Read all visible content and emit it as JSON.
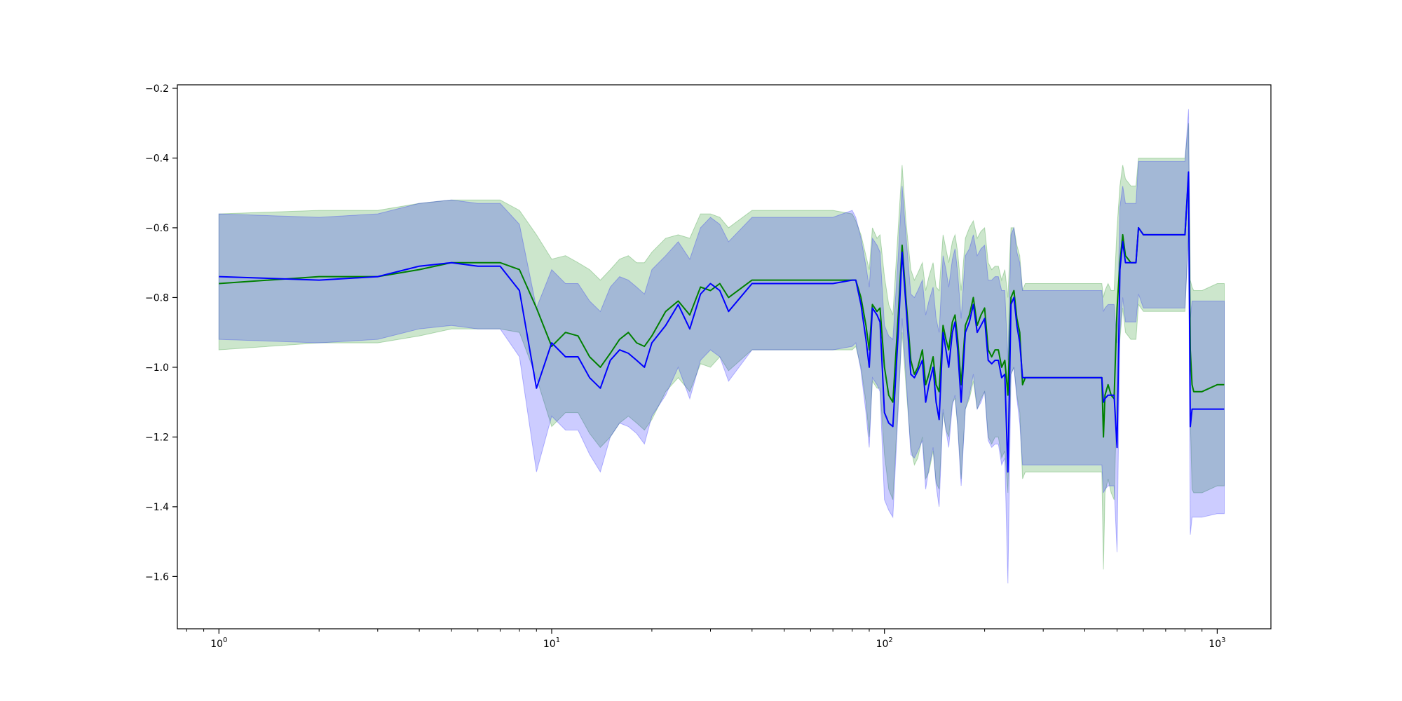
{
  "chart_data": {
    "type": "line",
    "title": "",
    "xlabel": "",
    "ylabel": "",
    "x_scale": "log",
    "xlim": [
      0.75,
      1450
    ],
    "ylim": [
      -1.75,
      -0.19
    ],
    "grid": false,
    "legend": "none",
    "x_ticks": [
      {
        "value": 1,
        "base": "10",
        "exp": "0"
      },
      {
        "value": 10,
        "base": "10",
        "exp": "1"
      },
      {
        "value": 100,
        "base": "10",
        "exp": "2"
      },
      {
        "value": 1000,
        "base": "10",
        "exp": "3"
      }
    ],
    "y_ticks": [
      {
        "value": -0.2,
        "label": "−0.2"
      },
      {
        "value": -0.4,
        "label": "−0.4"
      },
      {
        "value": -0.6,
        "label": "−0.6"
      },
      {
        "value": -0.8,
        "label": "−0.8"
      },
      {
        "value": -1.0,
        "label": "−1.0"
      },
      {
        "value": -1.2,
        "label": "−1.2"
      },
      {
        "value": -1.4,
        "label": "−1.4"
      },
      {
        "value": -1.6,
        "label": "−1.6"
      }
    ],
    "series": [
      {
        "color": "#008000",
        "band_color": "#008000",
        "band_opacity": 0.2,
        "x": [
          1,
          2,
          3,
          4,
          5,
          6,
          7,
          8,
          9,
          10,
          11,
          12,
          13,
          14,
          15,
          16,
          17,
          18,
          19,
          20,
          22,
          24,
          26,
          28,
          30,
          32,
          34,
          40,
          50,
          60,
          70,
          80,
          82,
          85,
          88,
          90,
          92,
          95,
          97,
          100,
          103,
          106,
          110,
          113,
          116,
          120,
          123,
          126,
          130,
          133,
          136,
          140,
          143,
          146,
          150,
          153,
          156,
          160,
          163,
          166,
          170,
          175,
          180,
          185,
          190,
          195,
          200,
          205,
          210,
          215,
          220,
          225,
          230,
          235,
          240,
          245,
          250,
          255,
          260,
          265,
          270,
          300,
          350,
          400,
          450,
          455,
          460,
          470,
          480,
          490,
          500,
          510,
          520,
          530,
          540,
          550,
          560,
          570,
          580,
          600,
          700,
          800,
          820,
          830,
          840,
          850,
          900,
          1000,
          1050
        ],
        "y": [
          -0.76,
          -0.74,
          -0.74,
          -0.72,
          -0.7,
          -0.7,
          -0.7,
          -0.72,
          -0.83,
          -0.94,
          -0.9,
          -0.91,
          -0.97,
          -1.0,
          -0.96,
          -0.92,
          -0.9,
          -0.93,
          -0.94,
          -0.91,
          -0.84,
          -0.81,
          -0.85,
          -0.77,
          -0.78,
          -0.76,
          -0.8,
          -0.75,
          -0.75,
          -0.75,
          -0.75,
          -0.75,
          -0.75,
          -0.8,
          -0.88,
          -0.95,
          -0.82,
          -0.84,
          -0.83,
          -1.0,
          -1.08,
          -1.1,
          -0.85,
          -0.65,
          -0.8,
          -0.98,
          -1.02,
          -1.0,
          -0.95,
          -1.05,
          -1.02,
          -0.97,
          -1.05,
          -1.07,
          -0.88,
          -0.92,
          -0.95,
          -0.87,
          -0.85,
          -0.92,
          -1.05,
          -0.88,
          -0.85,
          -0.8,
          -0.88,
          -0.85,
          -0.83,
          -0.95,
          -0.97,
          -0.95,
          -0.95,
          -1.0,
          -0.98,
          -1.08,
          -0.8,
          -0.78,
          -0.86,
          -0.9,
          -1.05,
          -1.03,
          -1.03,
          -1.03,
          -1.03,
          -1.03,
          -1.03,
          -1.2,
          -1.08,
          -1.05,
          -1.08,
          -1.09,
          -0.83,
          -0.7,
          -0.62,
          -0.68,
          -0.69,
          -0.7,
          -0.7,
          -0.7,
          -0.6,
          -0.62,
          -0.62,
          -0.62,
          -0.45,
          -0.95,
          -1.05,
          -1.07,
          -1.07,
          -1.05,
          -1.05
        ],
        "upper": [
          -0.56,
          -0.55,
          -0.55,
          -0.53,
          -0.52,
          -0.52,
          -0.52,
          -0.55,
          -0.62,
          -0.69,
          -0.68,
          -0.7,
          -0.72,
          -0.75,
          -0.72,
          -0.69,
          -0.68,
          -0.7,
          -0.7,
          -0.67,
          -0.63,
          -0.62,
          -0.63,
          -0.56,
          -0.56,
          -0.57,
          -0.6,
          -0.55,
          -0.55,
          -0.55,
          -0.55,
          -0.56,
          -0.58,
          -0.62,
          -0.68,
          -0.72,
          -0.6,
          -0.63,
          -0.62,
          -0.74,
          -0.82,
          -0.85,
          -0.6,
          -0.42,
          -0.58,
          -0.72,
          -0.75,
          -0.73,
          -0.7,
          -0.78,
          -0.74,
          -0.7,
          -0.77,
          -0.78,
          -0.62,
          -0.66,
          -0.7,
          -0.64,
          -0.62,
          -0.67,
          -0.78,
          -0.63,
          -0.6,
          -0.58,
          -0.63,
          -0.61,
          -0.6,
          -0.7,
          -0.72,
          -0.71,
          -0.71,
          -0.75,
          -0.72,
          -0.8,
          -0.6,
          -0.6,
          -0.65,
          -0.68,
          -0.78,
          -0.76,
          -0.76,
          -0.76,
          -0.76,
          -0.76,
          -0.76,
          -0.8,
          -0.78,
          -0.76,
          -0.78,
          -0.78,
          -0.6,
          -0.48,
          -0.42,
          -0.46,
          -0.47,
          -0.48,
          -0.48,
          -0.48,
          -0.4,
          -0.4,
          -0.4,
          -0.4,
          -0.3,
          -0.75,
          -0.77,
          -0.78,
          -0.78,
          -0.76,
          -0.76
        ],
        "lower": [
          -0.95,
          -0.93,
          -0.93,
          -0.91,
          -0.89,
          -0.89,
          -0.89,
          -0.9,
          -1.03,
          -1.17,
          -1.13,
          -1.13,
          -1.19,
          -1.23,
          -1.2,
          -1.16,
          -1.14,
          -1.16,
          -1.18,
          -1.15,
          -1.07,
          -1.03,
          -1.07,
          -0.99,
          -1.0,
          -0.97,
          -1.01,
          -0.95,
          -0.95,
          -0.95,
          -0.95,
          -0.95,
          -0.94,
          -1.0,
          -1.1,
          -1.2,
          -1.04,
          -1.06,
          -1.06,
          -1.25,
          -1.35,
          -1.38,
          -1.1,
          -0.9,
          -1.05,
          -1.23,
          -1.28,
          -1.26,
          -1.2,
          -1.32,
          -1.3,
          -1.24,
          -1.33,
          -1.35,
          -1.13,
          -1.18,
          -1.2,
          -1.1,
          -1.09,
          -1.17,
          -1.32,
          -1.12,
          -1.09,
          -1.04,
          -1.12,
          -1.09,
          -1.07,
          -1.2,
          -1.22,
          -1.2,
          -1.2,
          -1.26,
          -1.24,
          -1.36,
          -1.02,
          -1.0,
          -1.08,
          -1.13,
          -1.32,
          -1.3,
          -1.3,
          -1.3,
          -1.3,
          -1.3,
          -1.3,
          -1.58,
          -1.36,
          -1.32,
          -1.36,
          -1.38,
          -1.08,
          -0.92,
          -0.83,
          -0.9,
          -0.91,
          -0.92,
          -0.92,
          -0.92,
          -0.82,
          -0.84,
          -0.84,
          -0.84,
          -0.6,
          -1.15,
          -1.35,
          -1.36,
          -1.36,
          -1.34,
          -1.34
        ]
      },
      {
        "color": "#0000ff",
        "band_color": "#0000ff",
        "band_opacity": 0.2,
        "x": [
          1,
          2,
          3,
          4,
          5,
          6,
          7,
          8,
          9,
          10,
          11,
          12,
          13,
          14,
          15,
          16,
          17,
          18,
          19,
          20,
          22,
          24,
          26,
          28,
          30,
          32,
          34,
          40,
          50,
          60,
          70,
          80,
          82,
          85,
          88,
          90,
          92,
          95,
          97,
          100,
          103,
          106,
          110,
          113,
          116,
          120,
          123,
          126,
          130,
          133,
          136,
          140,
          143,
          146,
          150,
          153,
          156,
          160,
          163,
          166,
          170,
          175,
          180,
          185,
          190,
          195,
          200,
          205,
          210,
          215,
          220,
          225,
          230,
          235,
          240,
          245,
          250,
          255,
          260,
          265,
          270,
          300,
          350,
          400,
          450,
          455,
          460,
          470,
          480,
          490,
          500,
          510,
          520,
          530,
          540,
          550,
          560,
          570,
          580,
          600,
          700,
          800,
          820,
          830,
          840,
          850,
          900,
          1000,
          1050
        ],
        "y": [
          -0.74,
          -0.75,
          -0.74,
          -0.71,
          -0.7,
          -0.71,
          -0.71,
          -0.78,
          -1.06,
          -0.93,
          -0.97,
          -0.97,
          -1.03,
          -1.06,
          -0.98,
          -0.95,
          -0.96,
          -0.98,
          -1.0,
          -0.93,
          -0.88,
          -0.82,
          -0.89,
          -0.79,
          -0.76,
          -0.78,
          -0.84,
          -0.76,
          -0.76,
          -0.76,
          -0.76,
          -0.75,
          -0.75,
          -0.82,
          -0.92,
          -1.0,
          -0.83,
          -0.85,
          -0.87,
          -1.13,
          -1.16,
          -1.17,
          -0.9,
          -0.67,
          -0.82,
          -1.02,
          -1.03,
          -1.01,
          -0.98,
          -1.1,
          -1.05,
          -1.0,
          -1.1,
          -1.15,
          -0.9,
          -0.95,
          -1.0,
          -0.9,
          -0.87,
          -0.95,
          -1.1,
          -0.9,
          -0.87,
          -0.82,
          -0.9,
          -0.88,
          -0.86,
          -0.98,
          -0.99,
          -0.98,
          -0.98,
          -1.03,
          -1.02,
          -1.3,
          -0.82,
          -0.8,
          -0.88,
          -0.93,
          -1.03,
          -1.03,
          -1.03,
          -1.03,
          -1.03,
          -1.03,
          -1.03,
          -1.1,
          -1.09,
          -1.08,
          -1.08,
          -1.08,
          -1.23,
          -0.72,
          -0.64,
          -0.7,
          -0.7,
          -0.7,
          -0.7,
          -0.7,
          -0.6,
          -0.62,
          -0.62,
          -0.62,
          -0.44,
          -1.17,
          -1.12,
          -1.12,
          -1.12,
          -1.12,
          -1.12
        ],
        "upper": [
          -0.56,
          -0.57,
          -0.56,
          -0.53,
          -0.52,
          -0.53,
          -0.53,
          -0.59,
          -0.83,
          -0.72,
          -0.76,
          -0.76,
          -0.81,
          -0.84,
          -0.77,
          -0.74,
          -0.75,
          -0.77,
          -0.79,
          -0.72,
          -0.68,
          -0.64,
          -0.69,
          -0.6,
          -0.57,
          -0.59,
          -0.64,
          -0.57,
          -0.57,
          -0.57,
          -0.57,
          -0.55,
          -0.57,
          -0.63,
          -0.71,
          -0.77,
          -0.63,
          -0.65,
          -0.67,
          -0.88,
          -0.91,
          -0.92,
          -0.68,
          -0.48,
          -0.62,
          -0.79,
          -0.8,
          -0.78,
          -0.75,
          -0.85,
          -0.81,
          -0.77,
          -0.86,
          -0.9,
          -0.68,
          -0.72,
          -0.77,
          -0.69,
          -0.66,
          -0.73,
          -0.86,
          -0.68,
          -0.66,
          -0.62,
          -0.68,
          -0.66,
          -0.65,
          -0.75,
          -0.75,
          -0.74,
          -0.74,
          -0.78,
          -0.78,
          -0.98,
          -0.62,
          -0.6,
          -0.67,
          -0.7,
          -0.78,
          -0.78,
          -0.78,
          -0.78,
          -0.78,
          -0.78,
          -0.78,
          -0.84,
          -0.83,
          -0.82,
          -0.82,
          -0.82,
          -0.93,
          -0.54,
          -0.48,
          -0.53,
          -0.53,
          -0.53,
          -0.53,
          -0.53,
          -0.41,
          -0.41,
          -0.41,
          -0.41,
          -0.26,
          -0.86,
          -0.81,
          -0.81,
          -0.81,
          -0.81,
          -0.81
        ],
        "lower": [
          -0.92,
          -0.93,
          -0.92,
          -0.89,
          -0.88,
          -0.89,
          -0.89,
          -0.97,
          -1.3,
          -1.14,
          -1.18,
          -1.18,
          -1.25,
          -1.3,
          -1.2,
          -1.16,
          -1.17,
          -1.19,
          -1.22,
          -1.14,
          -1.08,
          -1.0,
          -1.09,
          -0.98,
          -0.95,
          -0.97,
          -1.04,
          -0.95,
          -0.95,
          -0.95,
          -0.95,
          -0.94,
          -0.93,
          -1.01,
          -1.13,
          -1.23,
          -1.03,
          -1.05,
          -1.07,
          -1.38,
          -1.41,
          -1.43,
          -1.12,
          -0.86,
          -1.02,
          -1.25,
          -1.26,
          -1.24,
          -1.21,
          -1.35,
          -1.29,
          -1.23,
          -1.34,
          -1.4,
          -1.12,
          -1.18,
          -1.23,
          -1.11,
          -1.08,
          -1.17,
          -1.34,
          -1.12,
          -1.08,
          -1.02,
          -1.12,
          -1.1,
          -1.07,
          -1.21,
          -1.23,
          -1.22,
          -1.22,
          -1.28,
          -1.26,
          -1.62,
          -1.02,
          -1.0,
          -1.09,
          -1.16,
          -1.28,
          -1.28,
          -1.28,
          -1.28,
          -1.28,
          -1.28,
          -1.28,
          -1.36,
          -1.35,
          -1.34,
          -1.34,
          -1.34,
          -1.53,
          -0.9,
          -0.8,
          -0.87,
          -0.87,
          -0.87,
          -0.87,
          -0.87,
          -0.79,
          -0.83,
          -0.83,
          -0.83,
          -0.62,
          -1.48,
          -1.43,
          -1.43,
          -1.43,
          -1.42,
          -1.42
        ]
      }
    ]
  }
}
